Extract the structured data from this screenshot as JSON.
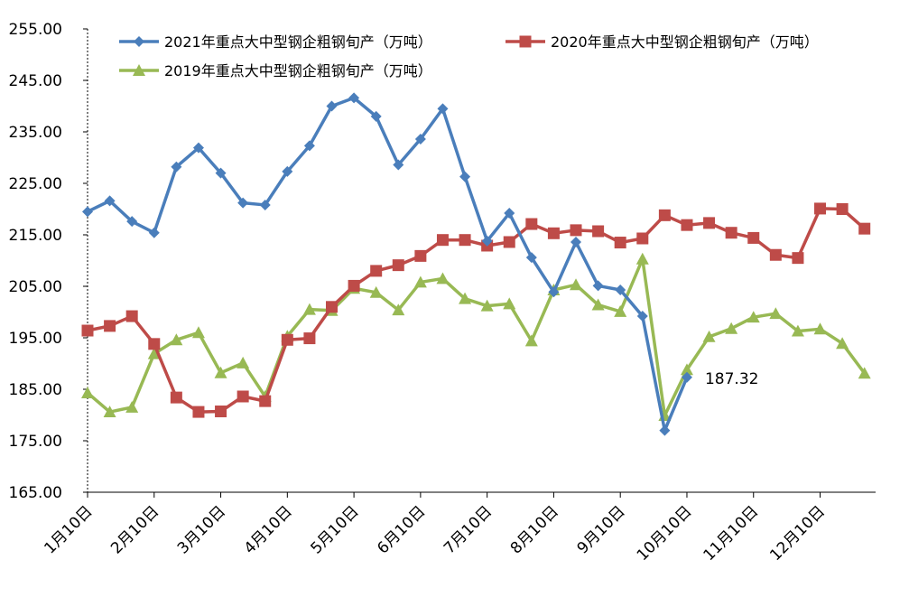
{
  "chart_data": {
    "type": "line",
    "x_tick_labels": [
      "1月10日",
      "2月10日",
      "3月10日",
      "4月10日",
      "5月10日",
      "6月10日",
      "7月10日",
      "8月10日",
      "9月10日",
      "10月10日",
      "11月10日",
      "12月10日"
    ],
    "y_tick_labels": [
      "165.00",
      "175.00",
      "185.00",
      "195.00",
      "205.00",
      "215.00",
      "225.00",
      "235.00",
      "245.00",
      "255.00"
    ],
    "ylim": [
      165,
      255
    ],
    "grid": false,
    "legend_position": "top",
    "series": [
      {
        "name": "2021年重点大中型钢企粗钢旬产（万吨）",
        "color": "#4a7ebb",
        "marker": "diamond",
        "values": [
          219.5,
          221.6,
          217.6,
          215.4,
          228.2,
          231.9,
          227.0,
          221.2,
          220.8,
          227.3,
          232.3,
          240.0,
          241.6,
          238.0,
          228.6,
          233.6,
          239.5,
          226.3,
          213.8,
          219.2,
          210.6,
          203.9,
          213.6,
          205.1,
          204.3,
          199.2,
          177.0,
          187.32
        ]
      },
      {
        "name": "2020年重点大中型钢企粗钢旬产（万吨）",
        "color": "#be4b48",
        "marker": "square",
        "values": [
          196.4,
          197.3,
          199.2,
          193.8,
          183.4,
          180.6,
          180.7,
          183.6,
          182.7,
          194.6,
          194.9,
          201.0,
          205.1,
          208.0,
          209.1,
          210.9,
          214.0,
          214.0,
          212.9,
          213.6,
          217.1,
          215.3,
          215.9,
          215.7,
          213.5,
          214.3,
          218.8,
          216.9,
          217.3,
          215.4,
          214.4,
          211.1,
          210.5,
          220.1,
          220.0,
          216.2
        ]
      },
      {
        "name": "2019年重点大中型钢企粗钢旬产（万吨）",
        "color": "#98b954",
        "marker": "triangle",
        "values": [
          184.3,
          180.6,
          181.5,
          191.9,
          194.6,
          196.0,
          188.2,
          190.1,
          183.6,
          195.3,
          200.5,
          200.3,
          204.6,
          203.8,
          200.4,
          205.8,
          206.5,
          202.6,
          201.2,
          201.6,
          194.4,
          204.3,
          205.3,
          201.4,
          200.1,
          210.3,
          179.9,
          188.8,
          195.2,
          196.8,
          199.0,
          199.7,
          196.3,
          196.7,
          193.9,
          188.1
        ]
      }
    ],
    "annotations": [
      {
        "text": "187.32",
        "series_index": 0,
        "point_index": 27
      }
    ]
  }
}
